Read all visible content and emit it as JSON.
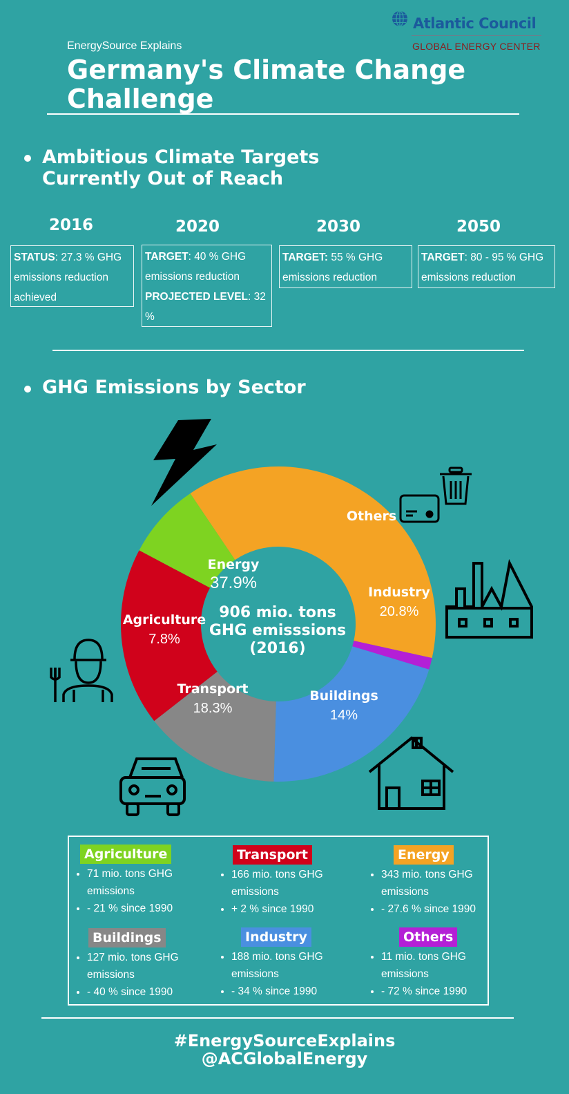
{
  "header": {
    "logo_name": "Atlantic Council",
    "logo_sub": "GLOBAL ENERGY CENTER",
    "kicker": "EnergySource Explains",
    "title": "Germany's Climate Change Challenge"
  },
  "targets_section": {
    "title_line1": "Ambitious Climate Targets",
    "title_line2": "Currently Out of Reach",
    "items": [
      {
        "year": "2016",
        "label": "STATUS",
        "text": ": 27.3 % GHG emissions reduction achieved"
      },
      {
        "year": "2020",
        "label": "TARGET",
        "text": ": 40 % GHG emissions reduction",
        "label2": "PROJECTED LEVEL",
        "text2": ": 32 %"
      },
      {
        "year": "2030",
        "label": "TARGET:",
        "text": " 55 % GHG emissions reduction"
      },
      {
        "year": "2050",
        "label": "TARGET",
        "text": ": 80 - 95 % GHG emissions reduction"
      }
    ]
  },
  "sector_section": {
    "title": "GHG Emissions by Sector"
  },
  "chart_data": {
    "type": "pie",
    "donut": true,
    "center_text": [
      "906 mio. tons",
      "GHG emisssions",
      "(2016)"
    ],
    "segments": [
      {
        "name": "Energy",
        "value": 37.9,
        "value_label": "37.9%",
        "color": "#f4a324"
      },
      {
        "name": "Others",
        "value": 1.2,
        "value_label": "",
        "color": "#b41fd6"
      },
      {
        "name": "Industry",
        "value": 20.8,
        "value_label": "20.8%",
        "color": "#4a8fe0"
      },
      {
        "name": "Buildings",
        "value": 14.0,
        "value_label": "14%",
        "color": "#878787"
      },
      {
        "name": "Transport",
        "value": 18.3,
        "value_label": "18.3%",
        "color": "#d0021b"
      },
      {
        "name": "Agriculture",
        "value": 7.8,
        "value_label": "7.8%",
        "color": "#7ed321"
      }
    ]
  },
  "icons": [
    "lightning-icon",
    "trash-can-icon",
    "card-icon",
    "factory-icon",
    "farmer-icon",
    "car-icon",
    "house-icon"
  ],
  "legend": [
    {
      "name": "Agriculture",
      "color": "#7ed321",
      "line1": "71 mio. tons GHG emissions",
      "line2": "- 21 % since 1990"
    },
    {
      "name": "Transport",
      "color": "#d0021b",
      "line1": "166 mio. tons GHG emissions",
      "line2": "+ 2 % since 1990"
    },
    {
      "name": "Energy",
      "color": "#f4a324",
      "line1": "343 mio. tons GHG emissions",
      "line2": "- 27.6 % since 1990"
    },
    {
      "name": "Buildings",
      "color": "#878787",
      "line1": "127 mio. tons GHG emissions",
      "line2": "- 40 % since 1990"
    },
    {
      "name": "Industry",
      "color": "#4a8fe0",
      "line1": "188 mio. tons GHG emissions",
      "line2": "- 34 % since 1990"
    },
    {
      "name": "Others",
      "color": "#b41fd6",
      "line1": "11 mio. tons GHG emissions",
      "line2": "- 72 % since 1990"
    }
  ],
  "footer": {
    "hashtag": "#EnergySourceExplains",
    "handle": "@ACGlobalEnergy"
  }
}
